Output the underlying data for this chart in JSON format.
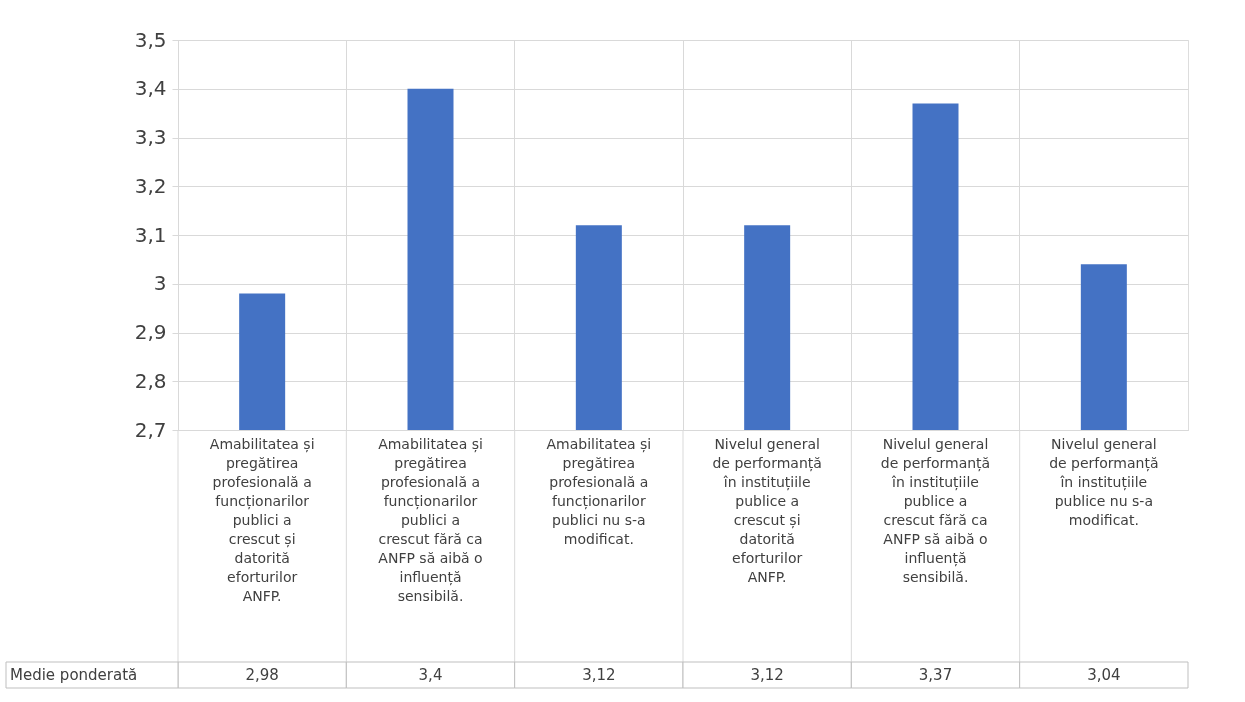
{
  "chart_data": {
    "type": "bar",
    "categories": [
      "Amabilitatea și pregătirea profesională a funcționarilor publici a crescut și datorită eforturilor ANFP.",
      "Amabilitatea și pregătirea profesională a funcționarilor publici a crescut fără ca ANFP să aibă o influență sensibilă.",
      "Amabilitatea și pregătirea profesională a funcționarilor publici nu s-a modificat.",
      "Nivelul general de performanță în instituțiile publice a crescut și datorită eforturilor ANFP.",
      "Nivelul general de performanță în instituțiile publice a crescut fără ca ANFP să aibă o influență sensibilă.",
      "Nivelul general de performanță în instituțiile publice nu s-a modificat."
    ],
    "series": [
      {
        "name": "Medie ponderată",
        "color": "#4472c4",
        "values": [
          2.98,
          3.4,
          3.12,
          3.12,
          3.37,
          3.04
        ],
        "value_labels": [
          "2,98",
          "3,4",
          "3,12",
          "3,12",
          "3,37",
          "3,04"
        ]
      }
    ],
    "ylim": [
      2.7,
      3.5
    ],
    "yticks": [
      {
        "value": 2.7,
        "label": "2,7"
      },
      {
        "value": 2.8,
        "label": "2,8"
      },
      {
        "value": 2.9,
        "label": "2,9"
      },
      3,
      {
        "value": 3.1,
        "label": "3,1"
      },
      {
        "value": 3.2,
        "label": "3,2"
      },
      {
        "value": 3.3,
        "label": "3,3"
      },
      {
        "value": 3.4,
        "label": "3,4"
      },
      {
        "value": 3.5,
        "label": "3,5"
      }
    ],
    "grid": true
  }
}
